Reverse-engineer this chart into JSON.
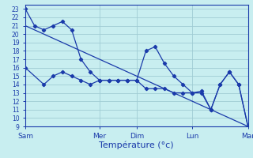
{
  "xlabel": "Température (°c)",
  "ylim": [
    9,
    23.5
  ],
  "yticks": [
    9,
    10,
    11,
    12,
    13,
    14,
    15,
    16,
    17,
    18,
    19,
    20,
    21,
    22,
    23
  ],
  "bg_color": "#c8eef0",
  "grid_color": "#a0ccd4",
  "line_color": "#1a3aaa",
  "xtick_labels": [
    "Sam",
    "Mer",
    "Dim",
    "Lun",
    "Mar"
  ],
  "xtick_positions": [
    0,
    4,
    6,
    9,
    12
  ],
  "x_total": 12,
  "line1_x": [
    0,
    0.5,
    1,
    1.5,
    2,
    2.5,
    3,
    3.5,
    4,
    4.5,
    5,
    5.5,
    6,
    6.5,
    7,
    7.5,
    8,
    8.5,
    9,
    9.5,
    10,
    10.5,
    11,
    11.5,
    12
  ],
  "line1_y": [
    23,
    21,
    20.5,
    21,
    21.5,
    20.5,
    17,
    15.5,
    14.5,
    14.5,
    14.5,
    14.5,
    14.5,
    18,
    18.5,
    16.5,
    15,
    14,
    13,
    13.2,
    11,
    14,
    15.5,
    14,
    9
  ],
  "line2_x": [
    0,
    1,
    1.5,
    2,
    2.5,
    3,
    3.5,
    4,
    4.5,
    5,
    5.5,
    6,
    6.5,
    7,
    7.5,
    8,
    8.5,
    9,
    9.5,
    10,
    10.5,
    11,
    11.5,
    12
  ],
  "line2_y": [
    16,
    14,
    15,
    15.5,
    15,
    14.5,
    14,
    14.5,
    14.5,
    14.5,
    14.5,
    14.5,
    13.5,
    13.5,
    13.5,
    13,
    13,
    13,
    13,
    11,
    14,
    15.5,
    14,
    9
  ],
  "trend_x": [
    0,
    12
  ],
  "trend_y": [
    21,
    9
  ],
  "xlabel_fontsize": 8,
  "ytick_fontsize": 5.5,
  "xtick_fontsize": 6.5
}
